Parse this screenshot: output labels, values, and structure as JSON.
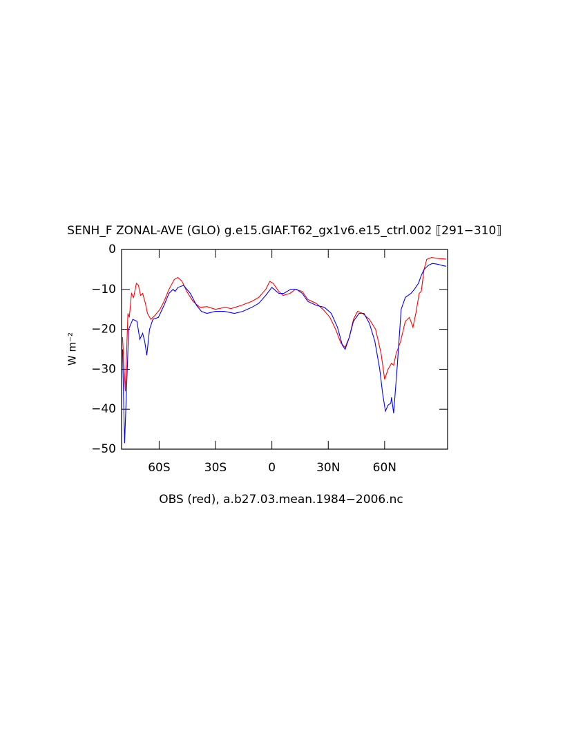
{
  "chart_data": {
    "type": "line",
    "title": "SENH_F ZONAL-AVE (GLO) g.e15.GIAF.T62_gx1v6.e15_ctrl.002 ⟦291−310⟧",
    "subtitle": "OBS (red), a.b27.03.mean.1984−2006.nc",
    "y_label": "W m⁻²",
    "xlim": [
      -80,
      93.5
    ],
    "ylim": [
      -50,
      0
    ],
    "xticks": [
      {
        "value": -60,
        "label": "60S"
      },
      {
        "value": -30,
        "label": "30S"
      },
      0,
      {
        "value": 30,
        "label": "30N"
      },
      {
        "value": 60,
        "label": "60N"
      }
    ],
    "yticks": [
      0,
      {
        "value": -10,
        "label": "−10"
      },
      {
        "value": -20,
        "label": "−20"
      },
      {
        "value": -30,
        "label": "−30"
      },
      {
        "value": -40,
        "label": "−40"
      },
      {
        "value": -50,
        "label": "−50"
      }
    ],
    "series": [
      {
        "color": "#ff0000",
        "x": [
          -79.5,
          -78,
          -76.6,
          -75.9,
          -74.7,
          -73.6,
          -72.1,
          -71,
          -69.9,
          -68.8,
          -67.3,
          -66.2,
          -64.4,
          -62.2,
          -59.6,
          -57.4,
          -54.8,
          -51.9,
          -50,
          -47.8,
          -45.3,
          -42,
          -38.3,
          -34.6,
          -30,
          -25,
          -21.7,
          -16.2,
          -10.7,
          -7,
          -3.3,
          -1.1,
          0.7,
          3.7,
          5.9,
          9.6,
          12.5,
          16.2,
          19.1,
          23.6,
          27.2,
          30.9,
          33.9,
          36.8,
          39,
          41.2,
          43.4,
          45.6,
          48.2,
          51.9,
          55.2,
          58.1,
          60,
          61.8,
          63.7,
          64.8,
          66.2,
          68.5,
          71,
          73.2,
          75.1,
          76.6,
          78.4,
          79.5,
          81,
          82.4,
          85,
          89.1,
          92.7
        ],
        "values": [
          -22,
          -35.5,
          -16,
          -17,
          -11,
          -12,
          -8.5,
          -9,
          -11.5,
          -11,
          -13.5,
          -16,
          -17.5,
          -16.5,
          -15,
          -13,
          -10,
          -7.5,
          -7,
          -8,
          -10.5,
          -13,
          -14.5,
          -14.3,
          -15,
          -14.5,
          -14.8,
          -14,
          -13,
          -12,
          -10,
          -8,
          -8.5,
          -10.5,
          -11.5,
          -11,
          -10,
          -10.5,
          -12.5,
          -13.5,
          -15,
          -17,
          -20,
          -23.5,
          -24.5,
          -22,
          -17.5,
          -15.5,
          -16,
          -17.5,
          -20,
          -26,
          -32.5,
          -30,
          -28.5,
          -29,
          -26,
          -23,
          -18,
          -17,
          -19.5,
          -16,
          -11,
          -10.5,
          -5,
          -2.5,
          -2,
          -2.3,
          -2.4
        ]
      },
      {
        "color": "#0000ff",
        "x": [
          -79.5,
          -78.4,
          -76.2,
          -74,
          -71.8,
          -70.3,
          -68.8,
          -67.7,
          -66.6,
          -65.1,
          -63.3,
          -60.4,
          -57.4,
          -54.8,
          -52.6,
          -51.5,
          -50,
          -47,
          -43.4,
          -40.1,
          -37.5,
          -34.6,
          -30,
          -25.4,
          -19.9,
          -15.5,
          -10.7,
          -7,
          -3.3,
          0,
          3.7,
          6.3,
          9.9,
          13.2,
          16.2,
          19.1,
          23.6,
          28,
          31.6,
          34.9,
          37.5,
          39,
          41.2,
          43.4,
          46.4,
          49,
          51.9,
          54.8,
          57.4,
          58.9,
          60.4,
          61.8,
          63.3,
          63.7,
          64.8,
          66.6,
          68.8,
          71,
          74,
          75.8,
          78,
          79.5,
          81,
          83.2,
          85.4,
          88.3,
          90.5,
          92.7
        ],
        "values": [
          -25,
          -48.5,
          -20,
          -17.5,
          -18,
          -22.5,
          -21,
          -23,
          -26.5,
          -20,
          -17.5,
          -17,
          -14,
          -11,
          -10,
          -10.5,
          -9.5,
          -9,
          -11,
          -14,
          -15.5,
          -16,
          -15.5,
          -15.5,
          -16,
          -15.5,
          -14.5,
          -13.5,
          -11.5,
          -9.5,
          -11,
          -11,
          -10,
          -10,
          -11,
          -13,
          -14,
          -14.5,
          -16,
          -19.5,
          -24,
          -25,
          -22,
          -18,
          -16,
          -16,
          -18.5,
          -23,
          -30,
          -36,
          -40.5,
          -39,
          -38.5,
          -37,
          -41,
          -30,
          -15,
          -12,
          -11,
          -10,
          -8.5,
          -6.5,
          -5,
          -4,
          -3.5,
          -3.7,
          -4,
          -4.2
        ]
      }
    ]
  }
}
